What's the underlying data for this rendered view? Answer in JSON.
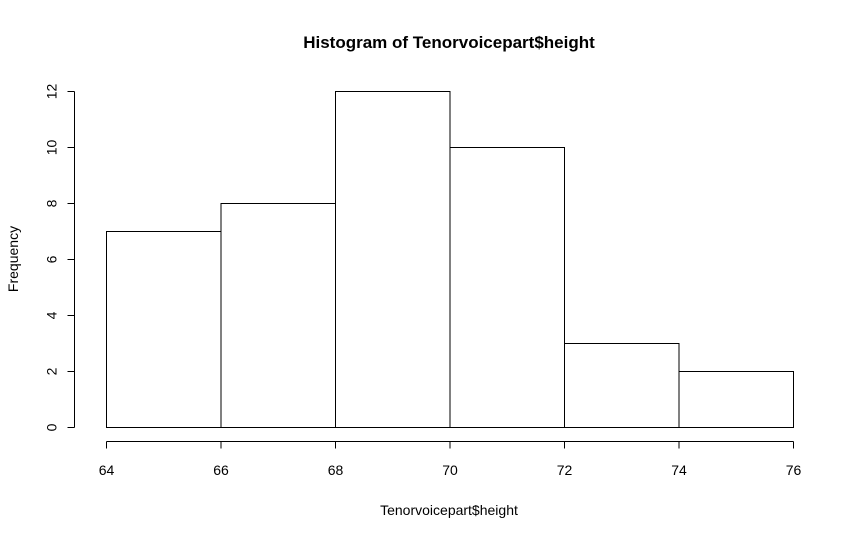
{
  "chart_data": {
    "type": "bar",
    "title": "Histogram of Tenorvoicepart$height",
    "xlabel": "Tenorvoicepart$height",
    "ylabel": "Frequency",
    "bins": [
      {
        "start": 64,
        "end": 66,
        "count": 7
      },
      {
        "start": 66,
        "end": 68,
        "count": 8
      },
      {
        "start": 68,
        "end": 70,
        "count": 12
      },
      {
        "start": 70,
        "end": 72,
        "count": 10
      },
      {
        "start": 72,
        "end": 74,
        "count": 3
      },
      {
        "start": 74,
        "end": 76,
        "count": 2
      }
    ],
    "xlim": [
      64,
      76
    ],
    "ylim": [
      0,
      12
    ],
    "xticks": [
      64,
      66,
      68,
      70,
      72,
      74,
      76
    ],
    "yticks": [
      0,
      2,
      4,
      6,
      8,
      10,
      12
    ],
    "grid": false,
    "bar_fill": "#ffffff",
    "bar_stroke": "#000000"
  }
}
